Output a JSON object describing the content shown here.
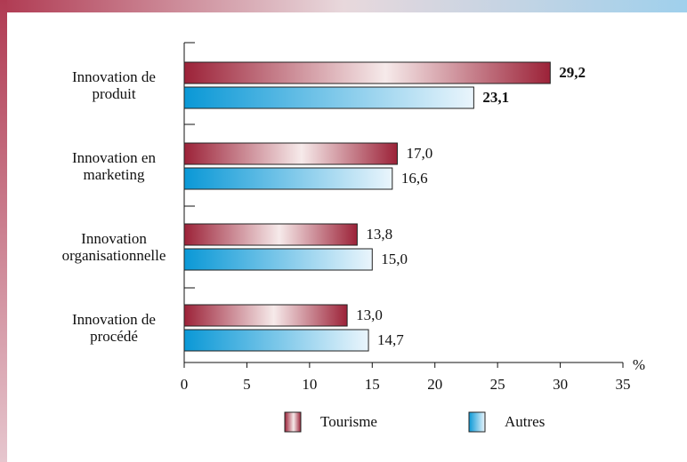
{
  "chart_data": {
    "type": "barh",
    "categories": [
      "Innovation de produit",
      "Innovation en marketing",
      "Innovation organisationnelle",
      "Innovation de procédé"
    ],
    "series": [
      {
        "name": "Tourisme",
        "color": "#9c2238",
        "values": [
          29.2,
          17.0,
          13.8,
          13.0
        ],
        "value_labels": [
          "29,2",
          "17,0",
          "13,8",
          "13,0"
        ]
      },
      {
        "name": "Autres",
        "color": "#0a98d6",
        "values": [
          23.1,
          16.6,
          15.0,
          14.7
        ],
        "value_labels": [
          "23,1",
          "16,6",
          "15,0",
          "14,7"
        ]
      }
    ],
    "xlabel": "%",
    "xlim": [
      0,
      35
    ],
    "xticks": [
      0,
      5,
      10,
      15,
      20,
      25,
      30,
      35
    ],
    "grid": false,
    "legend": "bottom"
  }
}
